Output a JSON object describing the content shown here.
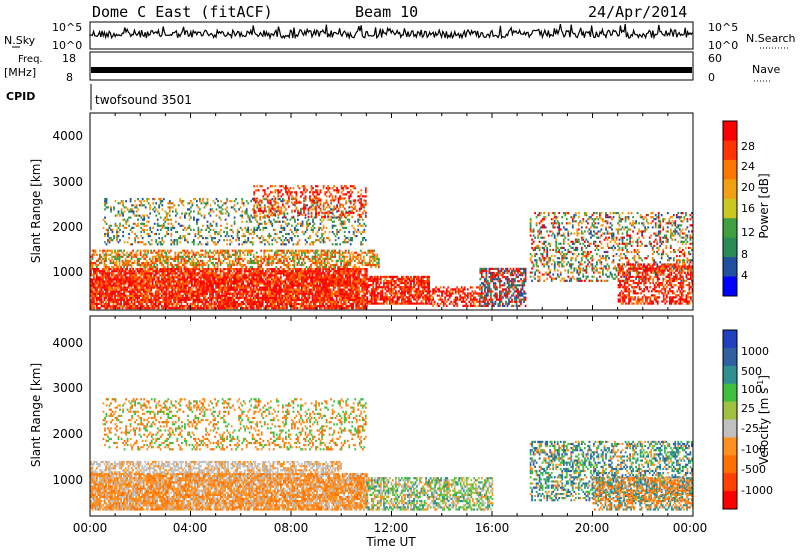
{
  "header": {
    "station": "Dome C East (fitACF)",
    "beam": "Beam 10",
    "date": "24/Apr/2014"
  },
  "chart_data": [
    {
      "type": "line",
      "panel": "sky-noise",
      "left_label": "N.Sky",
      "right_label": "N.Search",
      "left_ticks": [
        "10^5",
        "10^0"
      ],
      "right_ticks": [
        "10^5",
        "10^0"
      ]
    },
    {
      "type": "line",
      "panel": "frequency",
      "left_label": "Freq.",
      "left_unit": "[MHz]",
      "right_label": "Nave",
      "left_ticks": [
        "18",
        "8"
      ],
      "right_ticks": [
        "60",
        "0"
      ]
    },
    {
      "type": "text",
      "panel": "cpid",
      "label": "CPID",
      "value": "twofsound 3501"
    },
    {
      "type": "heatmap",
      "panel": "power",
      "ylabel": "Slant Range [km]",
      "yticks": [
        "4000",
        "3000",
        "2000",
        "1000"
      ],
      "ylim": [
        180,
        4500
      ],
      "colorbar_label": "Power [dB]",
      "colorbar_ticks": [
        "28",
        "24",
        "20",
        "16",
        "12",
        "8",
        "4"
      ],
      "colorbar_colors": [
        "#ff0000",
        "#ff3300",
        "#ff7700",
        "#f0a010",
        "#c8c820",
        "#40a040",
        "#2a8a58",
        "#2050a0",
        "#0000ff"
      ]
    },
    {
      "type": "heatmap",
      "panel": "velocity",
      "ylabel": "Slant Range [km]",
      "yticks": [
        "4000",
        "3000",
        "2000",
        "1000"
      ],
      "ylim": [
        180,
        4500
      ],
      "colorbar_label": "Velocity [m s",
      "colorbar_label_sup": "-1",
      "colorbar_label_end": "]",
      "colorbar_ticks": [
        "1000",
        "500",
        "100",
        "25",
        "-25",
        "-100",
        "-500",
        "-1000"
      ],
      "colorbar_colors": [
        "#2040c0",
        "#3060a0",
        "#309090",
        "#40c040",
        "#a0c040",
        "#c0c0c0",
        "#ff9020",
        "#ff7000",
        "#ff4000",
        "#ff0000"
      ],
      "xlabel": "Time UT",
      "xticks": [
        "00:00",
        "04:00",
        "08:00",
        "12:00",
        "16:00",
        "20:00",
        "00:00"
      ]
    }
  ]
}
